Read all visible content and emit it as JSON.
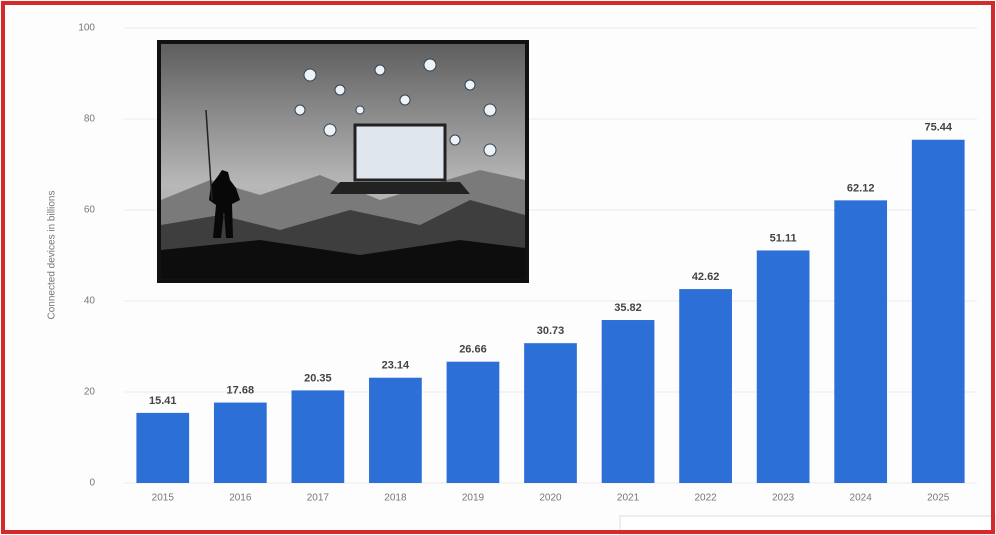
{
  "chart_data": {
    "type": "bar",
    "y_label": "Connected devices in billions",
    "categories": [
      "2015",
      "2016",
      "2017",
      "2018",
      "2019",
      "2020",
      "2021",
      "2022",
      "2023",
      "2024",
      "2025"
    ],
    "values": [
      15.41,
      17.68,
      20.35,
      23.14,
      26.66,
      30.73,
      35.82,
      42.62,
      51.11,
      62.12,
      75.44
    ],
    "color": "#2c6fd6",
    "ylim": [
      0,
      100
    ],
    "yticks": [
      0,
      20,
      40,
      60,
      80,
      100
    ],
    "grid": true
  }
}
